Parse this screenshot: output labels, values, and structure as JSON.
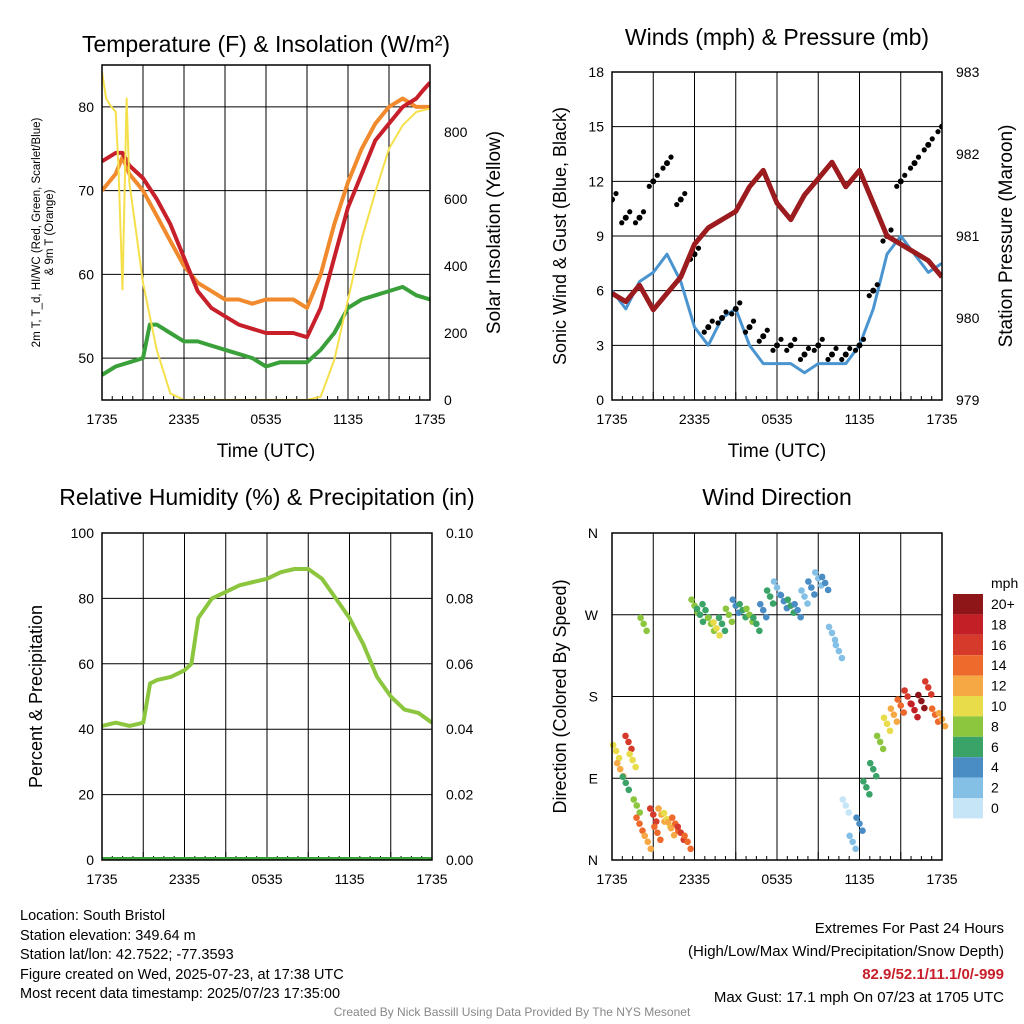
{
  "info": {
    "location": "Location: South Bristol",
    "elevation": "Station elevation: 349.64 m",
    "latlon": "Station lat/lon: 42.7522; -77.3593",
    "created": "Figure created on Wed, 2025-07-23, at 17:38 UTC",
    "recent": "Most recent data timestamp: 2025/07/23 17:35:00"
  },
  "extremes": {
    "title": "Extremes For Past 24 Hours",
    "subtitle": "(High/Low/Max Wind/Precipitation/Snow Depth)",
    "values": "82.9/52.1/11.1/0/-999",
    "gust": "Max Gust: 17.1 mph On 07/23 at 1705 UTC"
  },
  "credit": "Created By Nick Bassill Using Data Provided By The NYS Mesonet",
  "colors": {
    "temp": "#c8202a",
    "dew": "#3aa03a",
    "heat_index": "#e8342a",
    "temp9m": "#f08a2c",
    "solar": "#f5e04c",
    "wind": "#4a94d0",
    "gust": "#000000",
    "pressure": "#9b1b1e",
    "rh": "#8cc63f",
    "precip": "#3aa03a"
  },
  "chart_data": [
    {
      "type": "line",
      "title": "Temperature (F) & Insolation (W/m²)",
      "xlabel": "Time (UTC)",
      "ylabel_left": "2m T, T_d, HI/WC (Red, Green, Scarlet/Blue) & 9m T (Orange)",
      "ylabel_right": "Solar Insolation (Yellow)",
      "x_ticks": [
        "1735",
        "2335",
        "0535",
        "1135",
        "1735"
      ],
      "x_range": [
        0,
        24
      ],
      "ylim": [
        45,
        85
      ],
      "y_ticks": [
        50,
        60,
        70,
        80
      ],
      "ylim_right": [
        0,
        1000
      ],
      "y_ticks_right": [
        0,
        200,
        400,
        600,
        800
      ],
      "grid": true,
      "series": [
        {
          "axis": "left",
          "x": [
            0,
            1,
            1.5,
            2,
            3,
            4,
            5,
            6,
            7,
            8,
            9,
            10,
            11,
            12,
            13,
            14,
            15,
            16,
            17,
            18,
            19,
            20,
            21,
            22,
            23,
            23.5,
            24
          ],
          "values": [
            70,
            72,
            74,
            72,
            70,
            67,
            64,
            61,
            59,
            58,
            57,
            57,
            56.5,
            57,
            57,
            57,
            56,
            60,
            66,
            71,
            75,
            78,
            80,
            81,
            80,
            80,
            80
          ]
        },
        {
          "axis": "left",
          "x": [
            0,
            1,
            1.5,
            2,
            3,
            4,
            5,
            6,
            7,
            8,
            9,
            10,
            11,
            12,
            13,
            14,
            15,
            16,
            17,
            18,
            19,
            20,
            21,
            22,
            23,
            23.5,
            24
          ],
          "values": [
            73.5,
            74.5,
            74.5,
            73,
            71.5,
            69,
            66,
            62,
            58,
            56,
            55,
            54,
            53.5,
            53,
            53,
            53,
            52.5,
            56,
            62,
            68,
            72,
            76,
            78,
            80,
            81,
            82,
            82.9
          ]
        },
        {
          "axis": "left",
          "x": [
            0,
            1,
            2,
            3,
            3.5,
            4,
            5,
            6,
            7,
            8,
            9,
            10,
            11,
            12,
            13,
            14,
            15,
            16,
            17,
            18,
            19,
            20,
            21,
            22,
            23,
            24
          ],
          "values": [
            48,
            49,
            49.5,
            50,
            54,
            54,
            53,
            52,
            52,
            51.5,
            51,
            50.5,
            50,
            49,
            49.5,
            49.5,
            49.5,
            51,
            53,
            56,
            57,
            57.5,
            58,
            58.5,
            57.5,
            57
          ]
        },
        {
          "axis": "right",
          "x": [
            0,
            0.3,
            0.6,
            1,
            1.2,
            1.5,
            1.8,
            2,
            2.5,
            3,
            4,
            5,
            6,
            7,
            8,
            9,
            10,
            11,
            12,
            13,
            14,
            15,
            16,
            17,
            18,
            19,
            20,
            21,
            22,
            23,
            24
          ],
          "values": [
            980,
            900,
            880,
            860,
            700,
            330,
            900,
            650,
            500,
            350,
            150,
            20,
            0,
            0,
            0,
            0,
            0,
            0,
            0,
            0,
            0,
            0,
            10,
            120,
            300,
            480,
            620,
            750,
            820,
            860,
            870
          ]
        }
      ]
    },
    {
      "type": "line",
      "title": "Winds (mph) & Pressure (mb)",
      "xlabel": "Time (UTC)",
      "ylabel_left": "Sonic Wind & Gust (Blue, Black)",
      "ylabel_right": "Station Pressure (Maroon)",
      "x_ticks": [
        "1735",
        "2335",
        "0535",
        "1135",
        "1735"
      ],
      "x_range": [
        0,
        24
      ],
      "ylim": [
        0,
        18
      ],
      "y_ticks": [
        0,
        3,
        6,
        9,
        12,
        15,
        18
      ],
      "ylim_right": [
        979,
        983
      ],
      "y_ticks_right": [
        979,
        980,
        981,
        982,
        983
      ],
      "grid": true,
      "series": [
        {
          "axis": "left",
          "kind": "line",
          "x": [
            0,
            1,
            2,
            3,
            4,
            5,
            6,
            7,
            8,
            9,
            10,
            11,
            12,
            13,
            14,
            15,
            16,
            17,
            18,
            19,
            20,
            21,
            22,
            23,
            24
          ],
          "values": [
            6,
            5,
            6.5,
            7,
            8,
            6.5,
            4,
            3,
            4.5,
            5,
            3,
            2,
            2,
            2,
            1.5,
            2,
            2,
            2,
            3,
            5,
            8,
            9,
            8,
            7,
            7.5
          ]
        },
        {
          "axis": "left",
          "kind": "scatter",
          "x": [
            0,
            1,
            2,
            3,
            4,
            5,
            6,
            7,
            8,
            9,
            10,
            11,
            12,
            13,
            14,
            15,
            16,
            17,
            18,
            19,
            20,
            21,
            22,
            23,
            24
          ],
          "values": [
            11,
            10,
            10,
            12,
            13,
            11,
            8,
            4,
            4.5,
            5,
            4,
            3.5,
            3,
            3,
            2.5,
            3,
            2.5,
            2.5,
            3,
            6,
            9,
            12,
            13,
            14,
            15
          ]
        },
        {
          "axis": "right",
          "kind": "line",
          "x": [
            0,
            1,
            2,
            3,
            4,
            5,
            6,
            7,
            8,
            9,
            10,
            11,
            12,
            13,
            14,
            15,
            16,
            17,
            18,
            19,
            20,
            21,
            22,
            23,
            24
          ],
          "values": [
            980.3,
            980.2,
            980.4,
            980.1,
            980.3,
            980.5,
            980.9,
            981.1,
            981.2,
            981.3,
            981.6,
            981.8,
            981.4,
            981.2,
            981.5,
            981.7,
            981.9,
            981.6,
            981.8,
            981.4,
            981.0,
            980.9,
            980.8,
            980.7,
            980.5
          ]
        }
      ]
    },
    {
      "type": "line",
      "title": "Relative Humidity (%) & Precipitation (in)",
      "xlabel": "",
      "ylabel_left": "Percent & Precipitation",
      "x_ticks": [
        "1735",
        "2335",
        "0535",
        "1135",
        "1735"
      ],
      "x_range": [
        0,
        24
      ],
      "ylim": [
        0,
        100
      ],
      "y_ticks": [
        0,
        20,
        40,
        60,
        80,
        100
      ],
      "ylim_right": [
        0,
        0.1
      ],
      "y_ticks_right": [
        "0.00",
        "0.02",
        "0.04",
        "0.06",
        "0.08",
        "0.10"
      ],
      "grid": true,
      "series": [
        {
          "axis": "left",
          "x": [
            0,
            1,
            2,
            3,
            3.5,
            4,
            5,
            6,
            6.5,
            7,
            8,
            9,
            10,
            11,
            12,
            13,
            14,
            15,
            16,
            17,
            18,
            19,
            20,
            21,
            22,
            23,
            24
          ],
          "values": [
            41,
            42,
            41,
            42,
            54,
            55,
            56,
            58,
            60,
            74,
            80,
            82,
            84,
            85,
            86,
            88,
            89,
            89,
            86,
            80,
            74,
            66,
            56,
            50,
            46,
            45,
            42
          ]
        },
        {
          "axis": "right",
          "x": [
            0,
            24
          ],
          "values": [
            0,
            0
          ]
        }
      ]
    },
    {
      "type": "scatter",
      "title": "Wind Direction",
      "ylabel_left": "Direction (Colored By Speed)",
      "x_ticks": [
        "1735",
        "2335",
        "0535",
        "1135",
        "1735"
      ],
      "x_range": [
        0,
        24
      ],
      "y_ticks": [
        "N",
        "E",
        "S",
        "W",
        "N"
      ],
      "ylim": [
        0,
        360
      ],
      "grid": true,
      "legend": {
        "title": "mph",
        "labels": [
          "0",
          "2",
          "4",
          "6",
          "8",
          "10",
          "12",
          "14",
          "16",
          "18",
          "20+"
        ],
        "colors": [
          "#c6e6f7",
          "#84c0e6",
          "#4a8cc4",
          "#3aa368",
          "#8cc63f",
          "#e8dc4a",
          "#f5a843",
          "#ee6a2c",
          "#d63a2a",
          "#c21f26",
          "#8e1518"
        ],
        "placement": "right"
      },
      "points_x": [
        0.3,
        0.6,
        1,
        1.2,
        1.5,
        1.8,
        2,
        2.3,
        2.6,
        3,
        3.3,
        3.6,
        4,
        4.3,
        4.6,
        5,
        5.5,
        6,
        6.4,
        6.8,
        7.2,
        7.6,
        8,
        8.5,
        9,
        9.5,
        10,
        10.5,
        11,
        11.5,
        12,
        12.5,
        13,
        13.5,
        14,
        14.5,
        15,
        15.5,
        16,
        16.5,
        17,
        17.5,
        18,
        18.5,
        19,
        19.5,
        20,
        20.5,
        21,
        21.5,
        22,
        22.5,
        23,
        23.5,
        24
      ],
      "points_dir": [
        120,
        100,
        85,
        130,
        110,
        60,
        40,
        260,
        20,
        50,
        30,
        50,
        45,
        35,
        40,
        30,
        20,
        280,
        270,
        275,
        260,
        255,
        260,
        270,
        280,
        275,
        270,
        260,
        275,
        290,
        300,
        285,
        280,
        275,
        290,
        300,
        310,
        305,
        250,
        230,
        60,
        20,
        40,
        80,
        100,
        130,
        150,
        160,
        170,
        180,
        165,
        175,
        190,
        160,
        155
      ],
      "points_speed": [
        5,
        6,
        3,
        8,
        5,
        4,
        7,
        4,
        6,
        8,
        7,
        6,
        5,
        6,
        7,
        8,
        7,
        4,
        3,
        3,
        4,
        5,
        3,
        4,
        2,
        3,
        4,
        3,
        2,
        3,
        1,
        2,
        3,
        2,
        1,
        2,
        1,
        2,
        1,
        1,
        0,
        1,
        2,
        3,
        3,
        4,
        5,
        6,
        7,
        8,
        9,
        10,
        8,
        7,
        6
      ]
    }
  ]
}
